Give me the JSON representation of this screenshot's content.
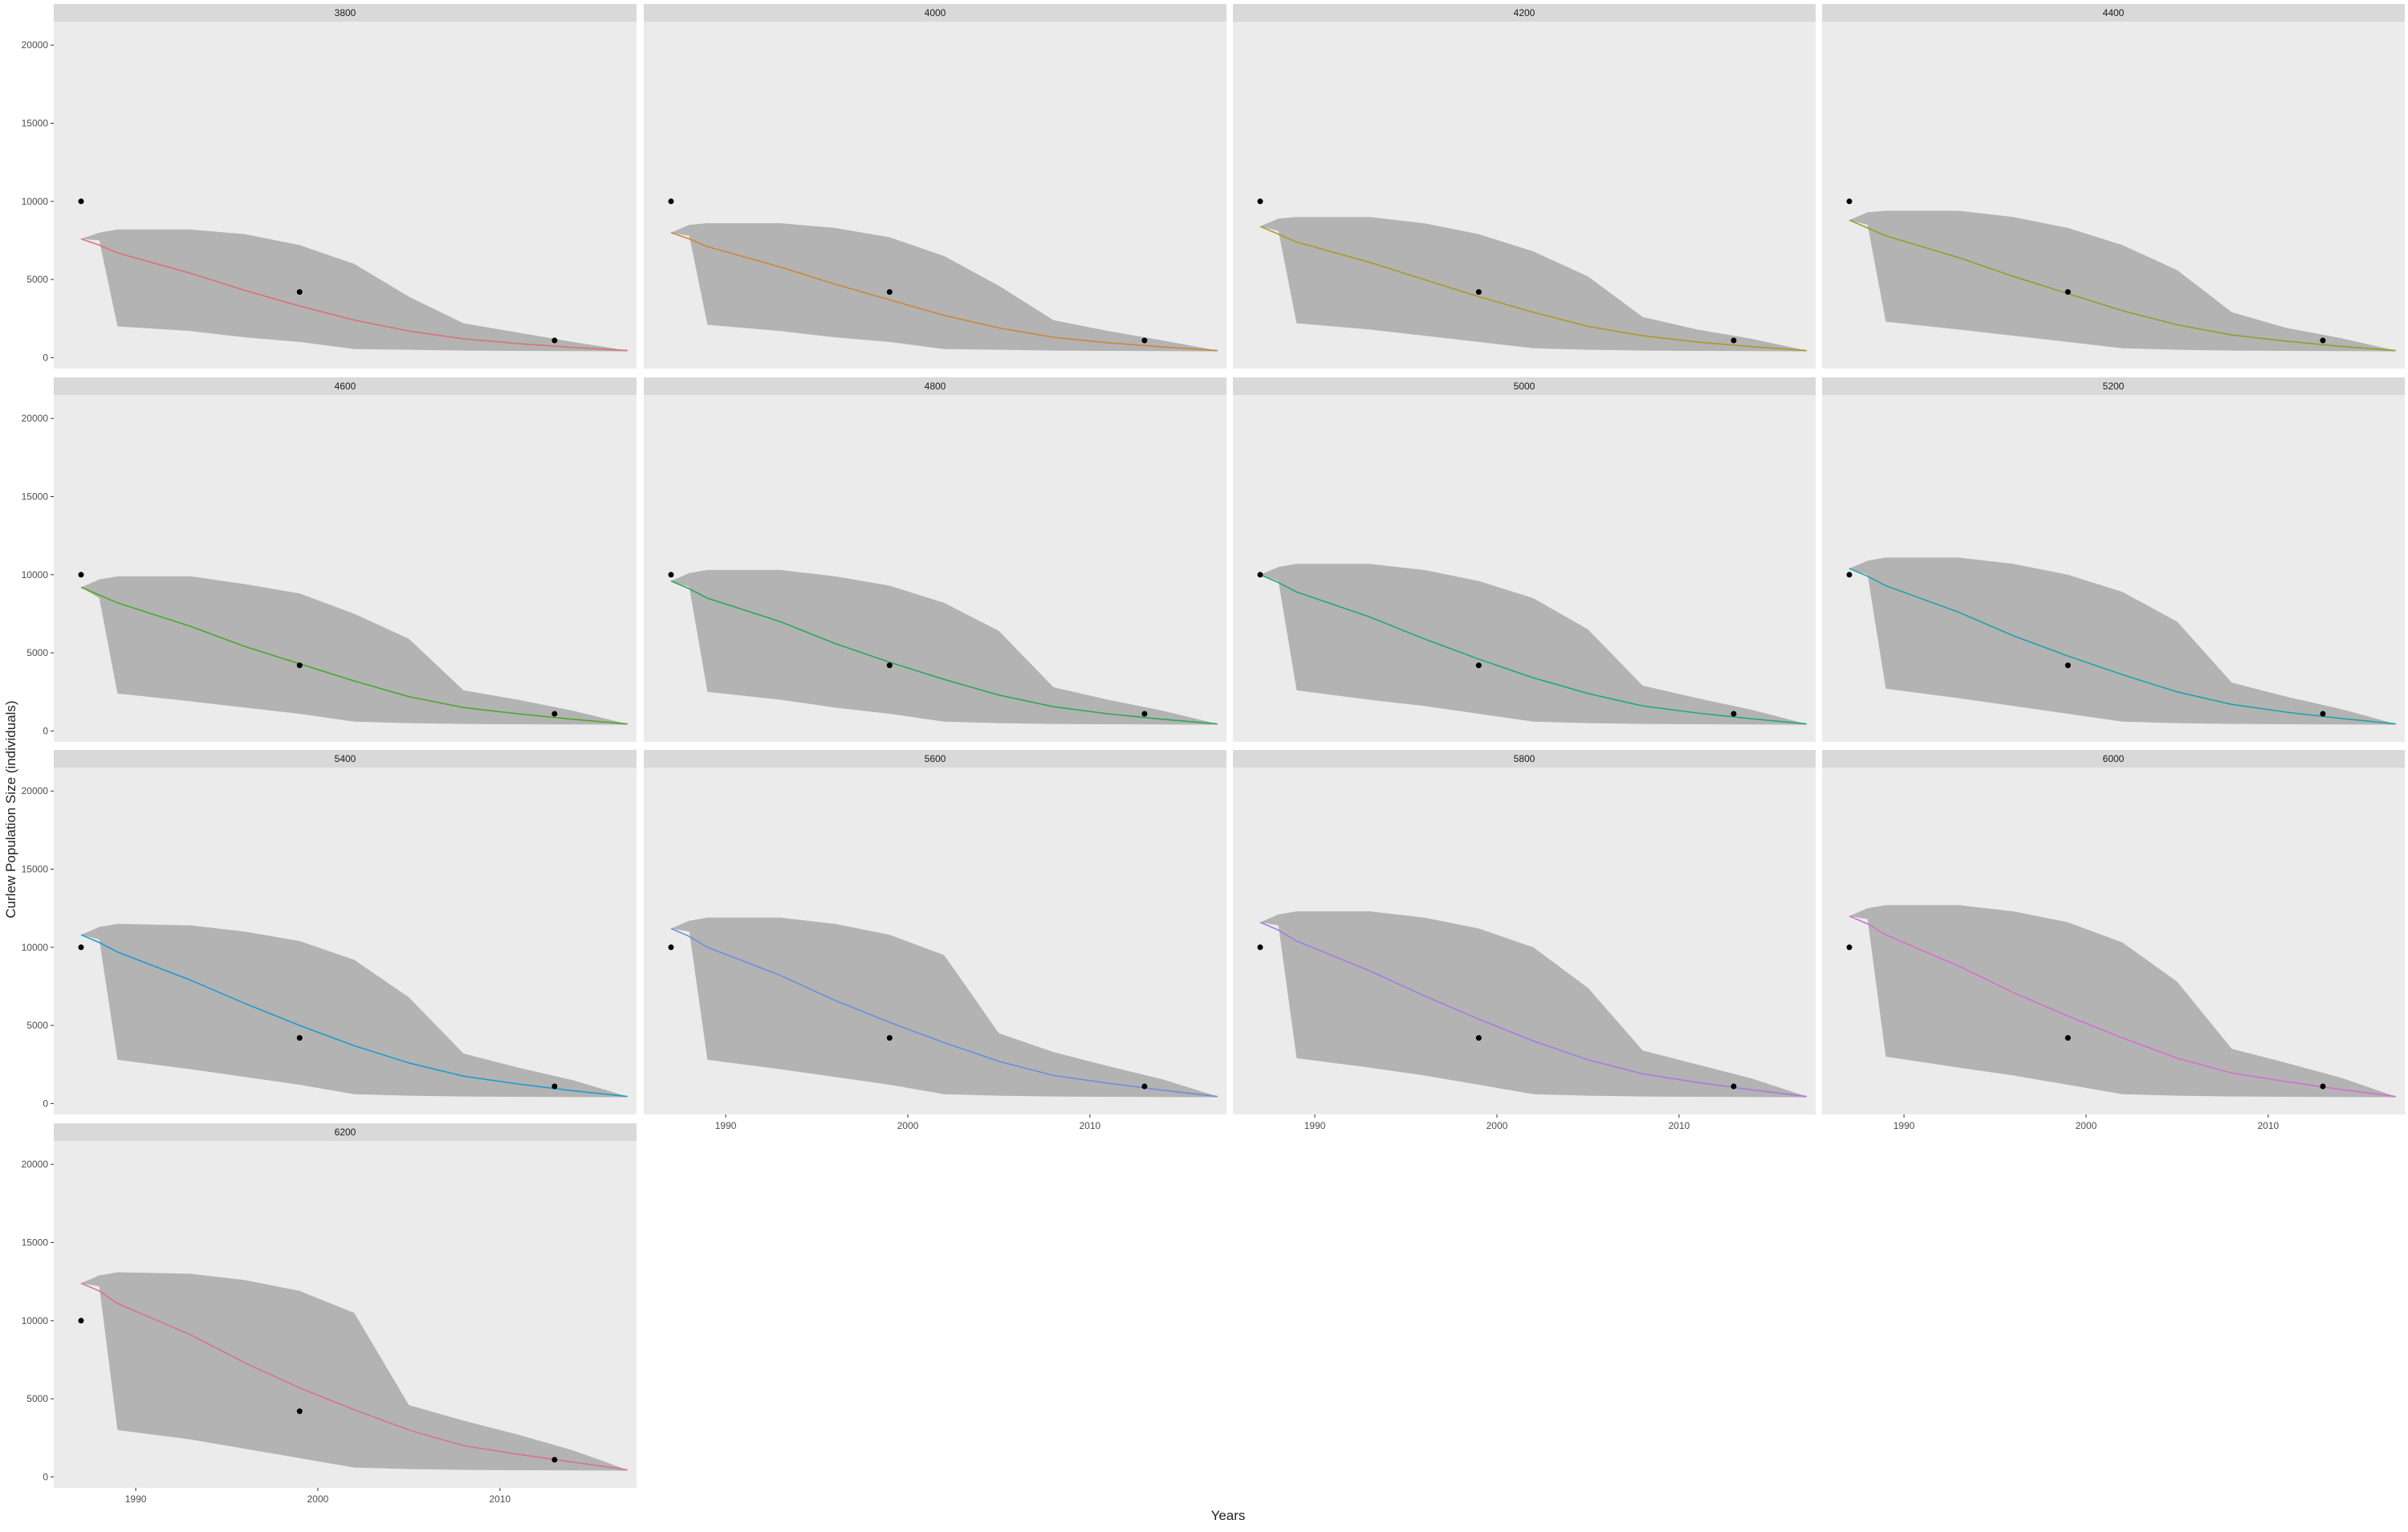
{
  "chart_data": {
    "type": "area",
    "layout": "facet grid, 4 columns, 4 rows (13 panels)",
    "xlabel": "Years",
    "ylabel": "Curlew Population Size (individuals)",
    "x_ticks": [
      1990,
      2000,
      2010
    ],
    "y_ticks": [
      0,
      5000,
      10000,
      15000,
      20000
    ],
    "xlim": [
      1985.5,
      2017.5
    ],
    "ylim": [
      -700,
      21500
    ],
    "grid": false,
    "background": "#ebebeb",
    "strip_color": "#d9d9d9",
    "ribbon_color": "#b3b3b3",
    "point_color": "#000000",
    "observed_points": {
      "x": [
        1987,
        1999,
        2013
      ],
      "y": [
        10000,
        4200,
        1100
      ]
    },
    "panels": [
      {
        "label": "3800",
        "color": "#d9717a",
        "years": [
          1987,
          1988,
          1989,
          1993,
          1996,
          1999,
          2002,
          2005,
          2008,
          2011,
          2014,
          2017
        ],
        "line": [
          7600,
          7200,
          6700,
          5400,
          4300,
          3300,
          2400,
          1700,
          1200,
          900,
          650,
          450
        ],
        "upper": [
          7600,
          8000,
          8200,
          8200,
          7900,
          7200,
          6000,
          3900,
          2200,
          1600,
          1000,
          450
        ],
        "lower": [
          7600,
          7500,
          2000,
          1700,
          1300,
          1000,
          550,
          500,
          450,
          430,
          420,
          400
        ]
      },
      {
        "label": "4000",
        "color": "#c9883a",
        "years": [
          1987,
          1988,
          1989,
          1993,
          1996,
          1999,
          2002,
          2005,
          2008,
          2011,
          2014,
          2017
        ],
        "line": [
          8000,
          7600,
          7100,
          5800,
          4700,
          3700,
          2700,
          1900,
          1300,
          950,
          680,
          450
        ],
        "upper": [
          8000,
          8500,
          8600,
          8600,
          8300,
          7700,
          6500,
          4600,
          2400,
          1700,
          1100,
          450
        ],
        "lower": [
          8000,
          7800,
          2100,
          1700,
          1300,
          1000,
          550,
          500,
          450,
          430,
          420,
          400
        ]
      },
      {
        "label": "4200",
        "color": "#a99a2a",
        "years": [
          1987,
          1988,
          1989,
          1993,
          1996,
          1999,
          2002,
          2005,
          2008,
          2011,
          2014,
          2017
        ],
        "line": [
          8400,
          7900,
          7400,
          6100,
          5000,
          3900,
          2900,
          2000,
          1400,
          1000,
          700,
          450
        ],
        "upper": [
          8400,
          8900,
          9000,
          9000,
          8600,
          7900,
          6800,
          5200,
          2600,
          1800,
          1200,
          450
        ],
        "lower": [
          8400,
          8100,
          2200,
          1800,
          1400,
          1000,
          600,
          500,
          450,
          430,
          420,
          400
        ]
      },
      {
        "label": "4400",
        "color": "#8aa22c",
        "years": [
          1987,
          1988,
          1989,
          1993,
          1996,
          1999,
          2002,
          2005,
          2008,
          2011,
          2014,
          2017
        ],
        "line": [
          8800,
          8300,
          7800,
          6400,
          5200,
          4100,
          3000,
          2100,
          1450,
          1050,
          720,
          450
        ],
        "upper": [
          8800,
          9300,
          9400,
          9400,
          9000,
          8300,
          7200,
          5600,
          2900,
          1900,
          1250,
          450
        ],
        "lower": [
          8800,
          8500,
          2300,
          1800,
          1400,
          1000,
          600,
          500,
          450,
          430,
          420,
          400
        ]
      },
      {
        "label": "4600",
        "color": "#4ea62e",
        "years": [
          1987,
          1988,
          1989,
          1993,
          1996,
          1999,
          2002,
          2005,
          2008,
          2011,
          2014,
          2017
        ],
        "line": [
          9200,
          8700,
          8200,
          6700,
          5400,
          4300,
          3200,
          2200,
          1500,
          1100,
          750,
          450
        ],
        "upper": [
          9200,
          9700,
          9900,
          9900,
          9400,
          8800,
          7500,
          5900,
          2600,
          2000,
          1300,
          450
        ],
        "lower": [
          9200,
          8500,
          2400,
          1900,
          1500,
          1100,
          600,
          500,
          450,
          430,
          420,
          400
        ]
      },
      {
        "label": "4800",
        "color": "#2ea65a",
        "years": [
          1987,
          1988,
          1989,
          1993,
          1996,
          1999,
          2002,
          2005,
          2008,
          2011,
          2014,
          2017
        ],
        "line": [
          9600,
          9100,
          8500,
          7000,
          5600,
          4400,
          3300,
          2300,
          1550,
          1100,
          750,
          450
        ],
        "upper": [
          9600,
          10100,
          10300,
          10300,
          9900,
          9300,
          8200,
          6400,
          2800,
          2000,
          1300,
          450
        ],
        "lower": [
          9600,
          9200,
          2500,
          2000,
          1500,
          1100,
          600,
          500,
          450,
          430,
          420,
          400
        ]
      },
      {
        "label": "5000",
        "color": "#22a883",
        "years": [
          1987,
          1988,
          1989,
          1993,
          1996,
          1999,
          2002,
          2005,
          2008,
          2011,
          2014,
          2017
        ],
        "line": [
          10000,
          9500,
          8900,
          7300,
          5900,
          4600,
          3400,
          2400,
          1600,
          1150,
          780,
          450
        ],
        "upper": [
          10000,
          10500,
          10700,
          10700,
          10300,
          9600,
          8500,
          6500,
          2900,
          2100,
          1350,
          450
        ],
        "lower": [
          10000,
          9600,
          2600,
          2000,
          1600,
          1100,
          600,
          500,
          450,
          430,
          420,
          400
        ]
      },
      {
        "label": "5200",
        "color": "#1fa3ac",
        "years": [
          1987,
          1988,
          1989,
          1993,
          1996,
          1999,
          2002,
          2005,
          2008,
          2011,
          2014,
          2017
        ],
        "line": [
          10400,
          9900,
          9300,
          7600,
          6100,
          4800,
          3600,
          2500,
          1700,
          1200,
          800,
          450
        ],
        "upper": [
          10400,
          10900,
          11100,
          11100,
          10700,
          10000,
          8900,
          7000,
          3100,
          2200,
          1400,
          450
        ],
        "lower": [
          10400,
          10000,
          2700,
          2100,
          1600,
          1100,
          600,
          500,
          450,
          430,
          420,
          400
        ]
      },
      {
        "label": "5400",
        "color": "#1f9bd1",
        "years": [
          1987,
          1988,
          1989,
          1993,
          1996,
          1999,
          2002,
          2005,
          2008,
          2011,
          2014,
          2017
        ],
        "line": [
          10800,
          10300,
          9700,
          7900,
          6400,
          5000,
          3700,
          2600,
          1750,
          1250,
          820,
          450
        ],
        "upper": [
          10800,
          11300,
          11500,
          11400,
          11000,
          10400,
          9200,
          6800,
          3200,
          2300,
          1500,
          450
        ],
        "lower": [
          10800,
          10500,
          2800,
          2200,
          1700,
          1200,
          600,
          500,
          450,
          430,
          420,
          400
        ]
      },
      {
        "label": "5600",
        "color": "#6b8fe0",
        "years": [
          1987,
          1988,
          1989,
          1993,
          1996,
          1999,
          2002,
          2005,
          2008,
          2011,
          2014,
          2017
        ],
        "line": [
          11200,
          10700,
          10000,
          8200,
          6600,
          5200,
          3900,
          2700,
          1800,
          1300,
          850,
          450
        ],
        "upper": [
          11200,
          11700,
          11900,
          11900,
          11500,
          10800,
          9500,
          4500,
          3300,
          2400,
          1550,
          450
        ],
        "lower": [
          11200,
          11000,
          2800,
          2200,
          1700,
          1200,
          600,
          500,
          450,
          430,
          420,
          400
        ]
      },
      {
        "label": "5800",
        "color": "#a77be0",
        "years": [
          1987,
          1988,
          1989,
          1993,
          1996,
          1999,
          2002,
          2005,
          2008,
          2011,
          2014,
          2017
        ],
        "line": [
          11600,
          11100,
          10400,
          8500,
          6900,
          5400,
          4000,
          2800,
          1900,
          1350,
          880,
          450
        ],
        "upper": [
          11600,
          12100,
          12300,
          12300,
          11900,
          11200,
          10000,
          7400,
          3400,
          2500,
          1600,
          450
        ],
        "lower": [
          11600,
          11400,
          2900,
          2300,
          1800,
          1200,
          600,
          500,
          450,
          430,
          420,
          400
        ]
      },
      {
        "label": "6000",
        "color": "#d46fd0",
        "years": [
          1987,
          1988,
          1989,
          1993,
          1996,
          1999,
          2002,
          2005,
          2008,
          2011,
          2014,
          2017
        ],
        "line": [
          12000,
          11500,
          10800,
          8800,
          7100,
          5600,
          4200,
          2900,
          1950,
          1400,
          900,
          450
        ],
        "upper": [
          12000,
          12500,
          12700,
          12700,
          12300,
          11600,
          10300,
          7800,
          3500,
          2600,
          1650,
          450
        ],
        "lower": [
          12000,
          11800,
          3000,
          2300,
          1800,
          1200,
          600,
          500,
          450,
          430,
          420,
          400
        ]
      },
      {
        "label": "6200",
        "color": "#d9709a",
        "years": [
          1987,
          1988,
          1989,
          1993,
          1996,
          1999,
          2002,
          2005,
          2008,
          2011,
          2014,
          2017
        ],
        "line": [
          12400,
          11900,
          11100,
          9100,
          7300,
          5700,
          4300,
          3000,
          2000,
          1450,
          950,
          450
        ],
        "upper": [
          12400,
          12900,
          13100,
          13000,
          12600,
          11900,
          10500,
          4600,
          3600,
          2700,
          1700,
          450
        ],
        "lower": [
          12400,
          12200,
          3000,
          2400,
          1800,
          1200,
          600,
          500,
          450,
          430,
          420,
          400
        ]
      }
    ]
  }
}
